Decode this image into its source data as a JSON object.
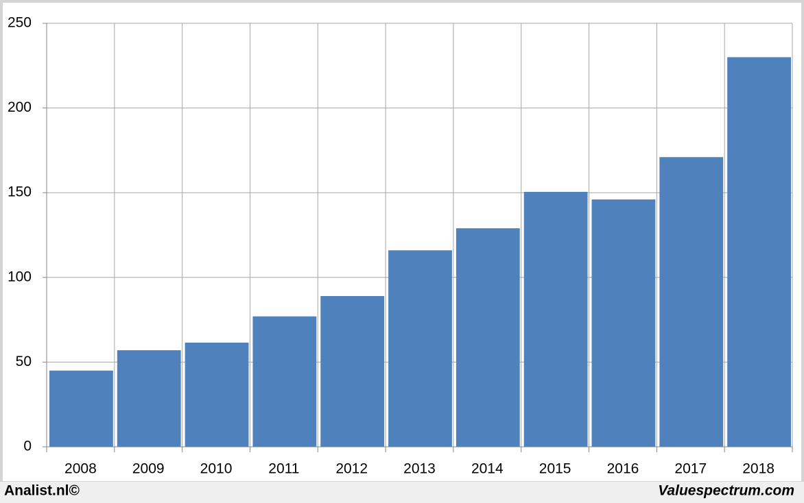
{
  "chart_data": {
    "type": "bar",
    "categories": [
      "2008",
      "2009",
      "2010",
      "2011",
      "2012",
      "2013",
      "2014",
      "2015",
      "2016",
      "2017",
      "2018"
    ],
    "values": [
      45,
      57,
      61.5,
      77,
      89,
      116,
      129,
      150.5,
      146,
      171,
      230
    ],
    "color": "#4f81bd",
    "ylim": [
      0,
      250
    ],
    "yticks": [
      0,
      50,
      100,
      150,
      200,
      250
    ],
    "grid": true,
    "footer_left": "Analist.nl©",
    "footer_right": "Valuespectrum.com"
  }
}
